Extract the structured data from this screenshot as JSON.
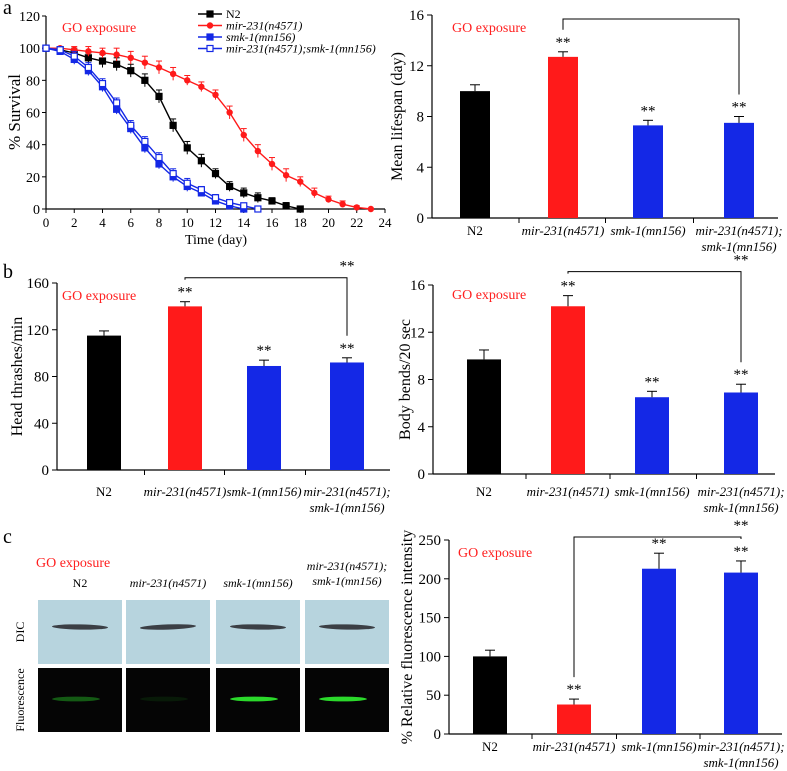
{
  "colors": {
    "black": "#000000",
    "red": "#ff1a1a",
    "blue": "#1428e6",
    "go_label": "#ff2020",
    "dic_bg": "#b7d4de",
    "fluor_bg": "#050505",
    "worm": "#3b3f45",
    "gfp": "#2bd92b"
  },
  "panel_labels": {
    "a": "a",
    "b": "b",
    "c": "c"
  },
  "go_label": "GO exposure",
  "significance": "**",
  "genotypes": [
    "N2",
    "mir-231(n4571)",
    "smk-1(mn156)",
    "mir-231(n4571);",
    "smk-1(mn156)"
  ],
  "chart_data": [
    {
      "id": "survival",
      "type": "line",
      "title": "GO exposure",
      "xlabel": "Time (day)",
      "ylabel": "% Survival",
      "xlim": [
        0,
        24
      ],
      "ylim": [
        0,
        120
      ],
      "xticks": [
        0,
        2,
        4,
        6,
        8,
        10,
        12,
        14,
        16,
        18,
        20,
        22,
        24
      ],
      "yticks": [
        0,
        20,
        40,
        60,
        80,
        100,
        120
      ],
      "legend_position": "top-center",
      "series": [
        {
          "name": "N2",
          "marker": "filled-square",
          "color_key": "black",
          "x": [
            0,
            1,
            2,
            3,
            4,
            5,
            6,
            7,
            8,
            9,
            10,
            11,
            12,
            13,
            14,
            15,
            16,
            17,
            18
          ],
          "y": [
            100,
            99,
            97,
            94,
            92,
            90,
            86,
            80,
            70,
            52,
            38,
            30,
            22,
            14,
            10,
            7,
            5,
            2,
            0
          ],
          "err": [
            0,
            2,
            3,
            3,
            4,
            4,
            4,
            4,
            4,
            4,
            4,
            4,
            3,
            3,
            3,
            3,
            2,
            2,
            0
          ]
        },
        {
          "name": "mir-231(n4571)",
          "marker": "filled-circle",
          "color_key": "red",
          "x": [
            0,
            1,
            2,
            3,
            4,
            5,
            6,
            7,
            8,
            9,
            10,
            11,
            12,
            13,
            14,
            15,
            16,
            17,
            18,
            19,
            20,
            21,
            22,
            23
          ],
          "y": [
            100,
            100,
            99,
            98,
            97,
            96,
            94,
            91,
            88,
            84,
            80,
            76,
            71,
            60,
            46,
            36,
            28,
            21,
            17,
            10,
            6,
            3,
            1,
            0
          ],
          "err": [
            0,
            1,
            2,
            3,
            3,
            4,
            4,
            4,
            4,
            4,
            3,
            3,
            3,
            4,
            4,
            4,
            4,
            4,
            3,
            3,
            2,
            2,
            1,
            0
          ]
        },
        {
          "name": "smk-1(mn156)",
          "marker": "filled-square",
          "color_key": "blue",
          "x": [
            0,
            1,
            2,
            3,
            4,
            5,
            6,
            7,
            8,
            9,
            10,
            11,
            12,
            13,
            14
          ],
          "y": [
            100,
            98,
            93,
            86,
            76,
            62,
            50,
            38,
            28,
            20,
            14,
            10,
            5,
            2,
            0
          ],
          "err": [
            0,
            2,
            3,
            3,
            3,
            3,
            3,
            3,
            3,
            3,
            3,
            2,
            2,
            1,
            0
          ]
        },
        {
          "name": "mir-231(n4571);smk-1(mn156)",
          "marker": "open-square",
          "color_key": "blue",
          "x": [
            0,
            1,
            2,
            3,
            4,
            5,
            6,
            7,
            8,
            9,
            10,
            11,
            12,
            13,
            14,
            15
          ],
          "y": [
            100,
            99,
            95,
            88,
            78,
            66,
            52,
            42,
            32,
            22,
            16,
            12,
            7,
            4,
            2,
            0
          ],
          "err": [
            0,
            2,
            3,
            3,
            3,
            3,
            3,
            3,
            3,
            3,
            3,
            2,
            2,
            1,
            1,
            0
          ]
        }
      ]
    },
    {
      "id": "lifespan",
      "type": "bar",
      "title": "GO exposure",
      "ylabel": "Mean lifespan (day)",
      "ylim": [
        0,
        16
      ],
      "yticks": [
        0,
        4,
        8,
        12,
        16
      ],
      "categories": [
        "N2",
        "mir-231(n4571)",
        "smk-1(mn156)",
        "mir-231(n4571);\nsmk-1(mn156)"
      ],
      "values": [
        10.0,
        12.7,
        7.3,
        7.5
      ],
      "errors": [
        0.5,
        0.4,
        0.4,
        0.5
      ],
      "color_keys": [
        "black",
        "red",
        "blue",
        "blue"
      ],
      "sig": [
        "",
        "**",
        "**",
        "**"
      ],
      "brackets": [
        [
          1,
          3
        ]
      ]
    },
    {
      "id": "thrashes",
      "type": "bar",
      "title": "GO exposure",
      "ylabel": "Head thrashes/min",
      "ylim": [
        0,
        160
      ],
      "yticks": [
        0,
        40,
        80,
        120,
        160
      ],
      "categories": [
        "N2",
        "mir-231(n4571)",
        "smk-1(mn156)",
        "mir-231(n4571);\nsmk-1(mn156)"
      ],
      "values": [
        115,
        140,
        89,
        92
      ],
      "errors": [
        4,
        4,
        5,
        4
      ],
      "color_keys": [
        "black",
        "red",
        "blue",
        "blue"
      ],
      "sig": [
        "",
        "**",
        "**",
        "**"
      ],
      "brackets": [
        [
          1,
          3
        ]
      ]
    },
    {
      "id": "bends",
      "type": "bar",
      "title": "GO exposure",
      "ylabel": "Body bends/20 sec",
      "ylim": [
        0,
        16
      ],
      "yticks": [
        0,
        4,
        8,
        12,
        16
      ],
      "categories": [
        "N2",
        "mir-231(n4571)",
        "smk-1(mn156)",
        "mir-231(n4571);\nsmk-1(mn156)"
      ],
      "values": [
        9.7,
        14.2,
        6.5,
        6.9
      ],
      "errors": [
        0.8,
        0.9,
        0.5,
        0.7
      ],
      "color_keys": [
        "black",
        "red",
        "blue",
        "blue"
      ],
      "sig": [
        "",
        "**",
        "**",
        "**"
      ],
      "brackets": [
        [
          1,
          3
        ]
      ]
    },
    {
      "id": "fluorescence",
      "type": "bar",
      "title": "GO exposure",
      "ylabel": "% Relative fluorescence intensity",
      "ylim": [
        0,
        250
      ],
      "yticks": [
        0,
        50,
        100,
        150,
        200,
        250
      ],
      "categories": [
        "N2",
        "mir-231(n4571)",
        "smk-1(mn156)",
        "mir-231(n4571);\nsmk-1(mn156)"
      ],
      "values": [
        100,
        38,
        213,
        208
      ],
      "errors": [
        8,
        7,
        20,
        15
      ],
      "color_keys": [
        "black",
        "red",
        "blue",
        "blue"
      ],
      "sig": [
        "",
        "**",
        "**",
        "**"
      ],
      "brackets": [
        [
          1,
          3
        ]
      ]
    }
  ],
  "images": {
    "go_label": "GO exposure",
    "columns": [
      "N2",
      "mir-231(n4571)",
      "smk-1(mn156)",
      "mir-231(n4571);\nsmk-1(mn156)"
    ],
    "rows": [
      "DIC",
      "Fluorescence"
    ],
    "gfp_relative": [
      0.4,
      0.1,
      1.0,
      1.0
    ]
  }
}
